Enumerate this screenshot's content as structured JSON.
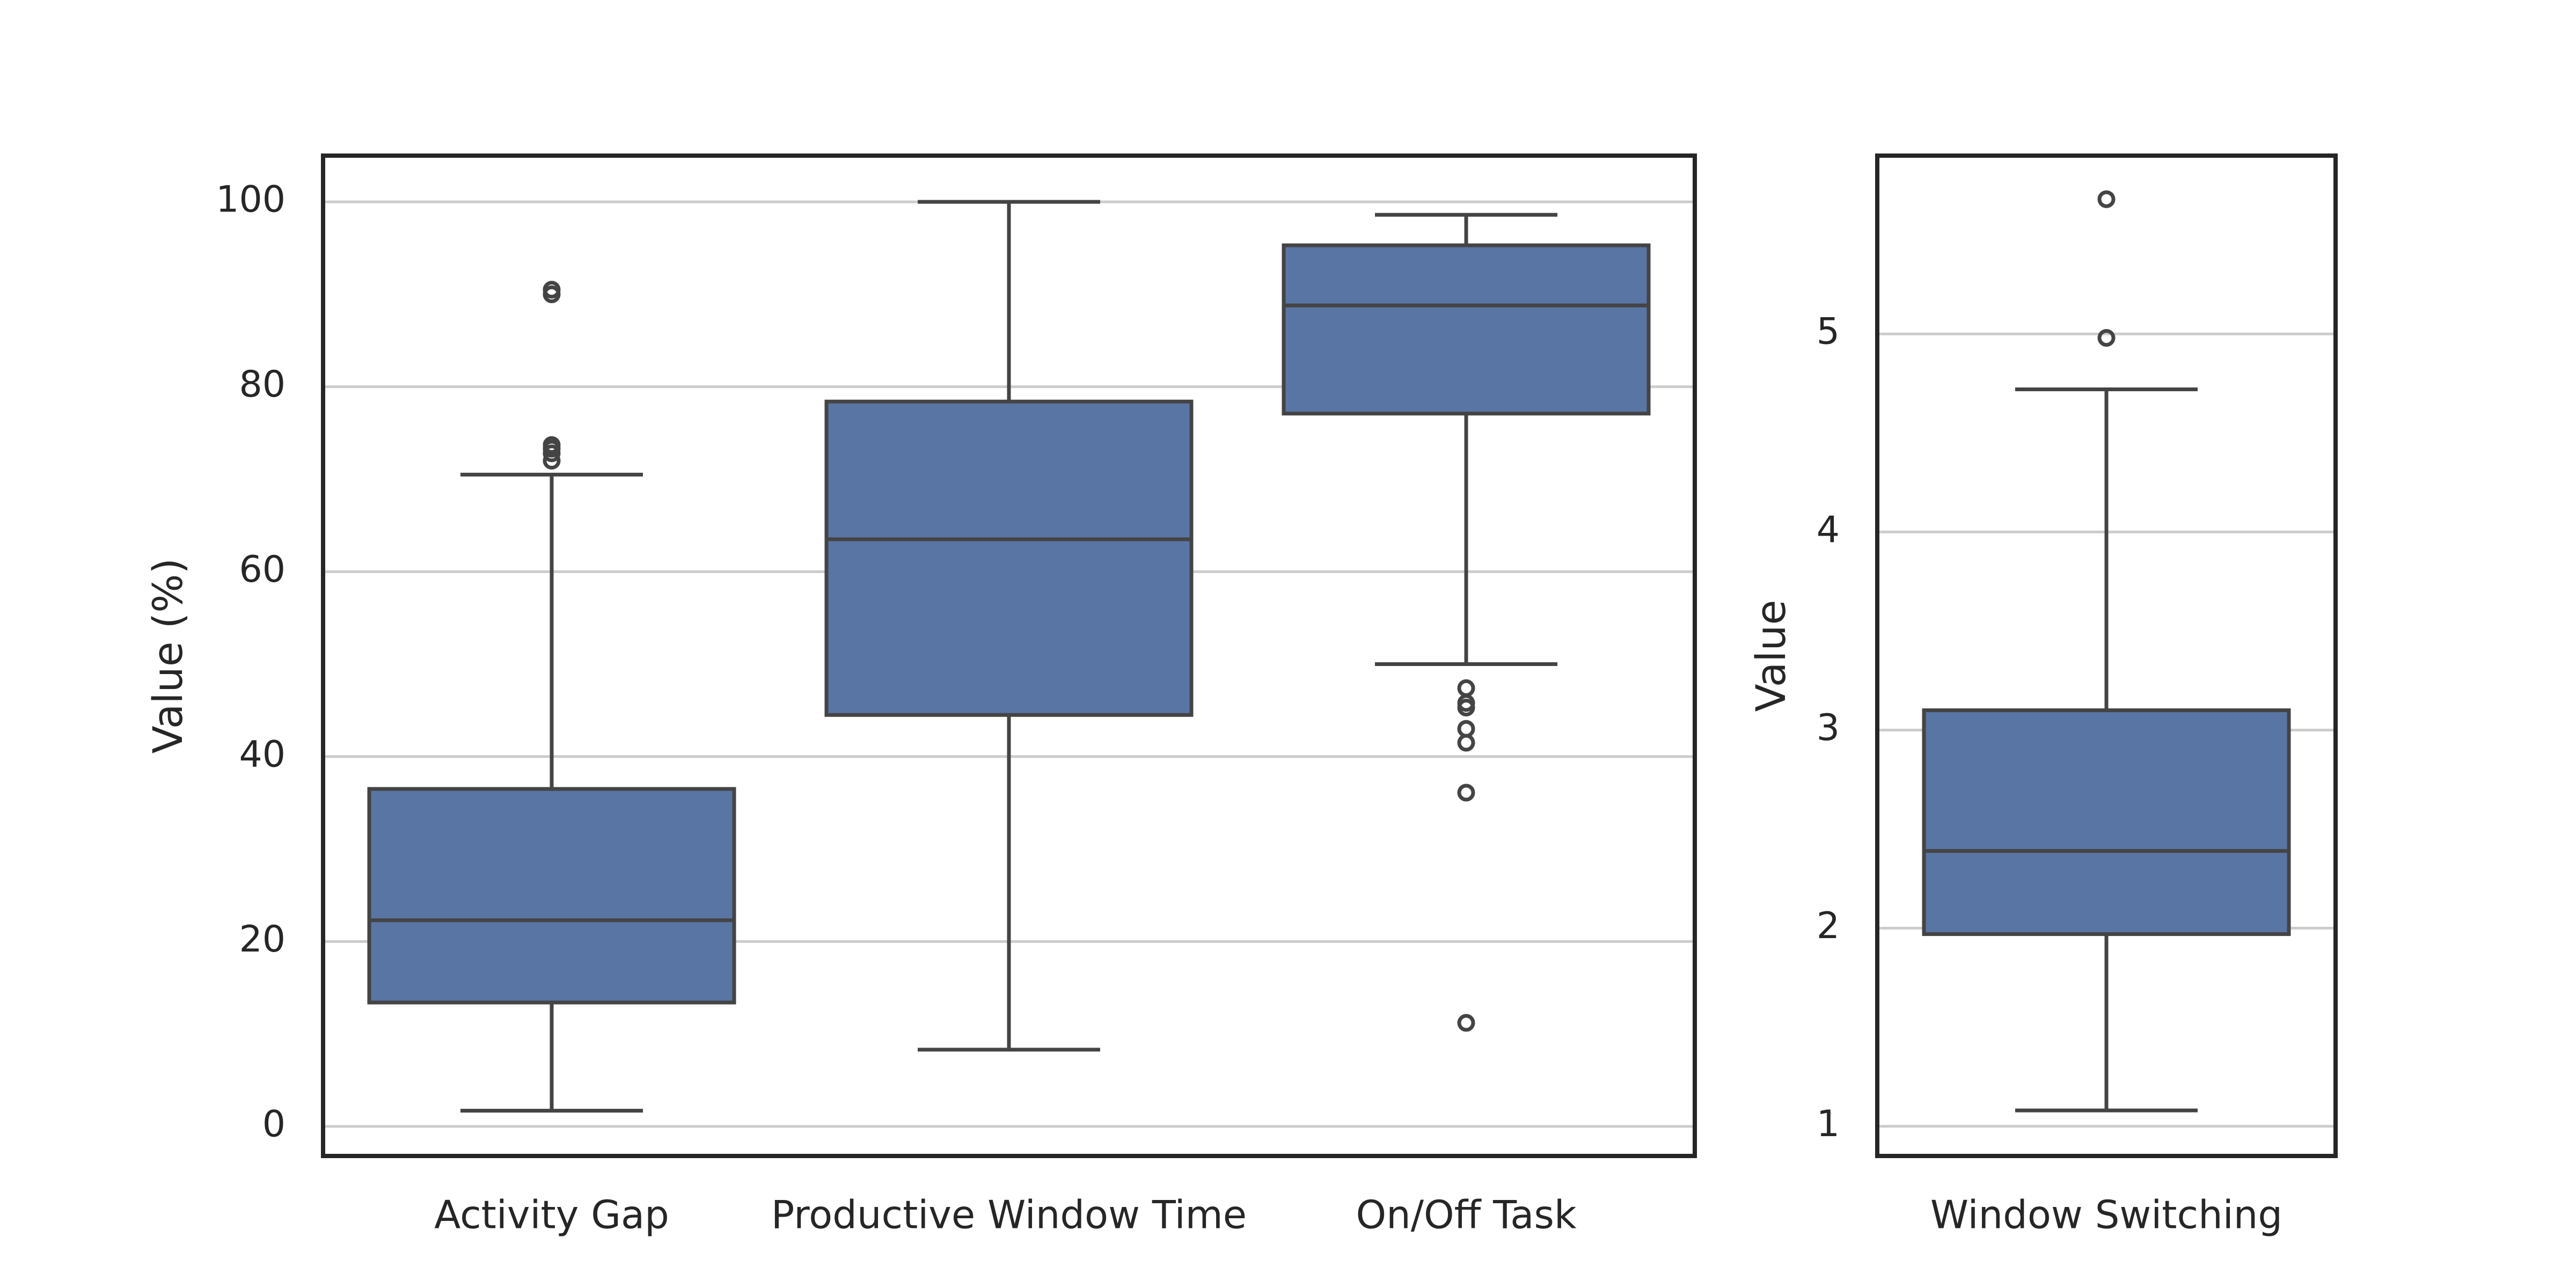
{
  "chart_data": [
    {
      "type": "box",
      "ylabel": "Value (%)",
      "ylim": [
        -3.2,
        105
      ],
      "yticks": [
        0,
        20,
        40,
        60,
        80,
        100
      ],
      "ytick_labels": [
        "0",
        "20",
        "40",
        "60",
        "80",
        "100"
      ],
      "grid": "horizontal",
      "color": "#5975a4",
      "edge_color": "#444444",
      "categories": [
        "Activity Gap",
        "Productive Window Time",
        "On/Off Task"
      ],
      "boxes": [
        {
          "category": "Activity Gap",
          "whisker_low": 1.7,
          "q1": 13.4,
          "median": 22.3,
          "q3": 36.5,
          "whisker_high": 70.5,
          "outliers": [
            72.0,
            72.8,
            73.3,
            73.7,
            90.0,
            90.5
          ]
        },
        {
          "category": "Productive Window Time",
          "whisker_low": 8.3,
          "q1": 44.5,
          "median": 63.5,
          "q3": 78.4,
          "whisker_high": 100.0,
          "outliers": []
        },
        {
          "category": "On/Off Task",
          "whisker_low": 50.0,
          "q1": 77.1,
          "median": 88.8,
          "q3": 95.3,
          "whisker_high": 98.6,
          "outliers": [
            11.2,
            36.1,
            41.5,
            43.0,
            45.3,
            45.8,
            47.4
          ]
        }
      ]
    },
    {
      "type": "box",
      "ylabel": "Value",
      "ylim": [
        0.85,
        5.9
      ],
      "yticks": [
        1,
        2,
        3,
        4,
        5
      ],
      "ytick_labels": [
        "1",
        "2",
        "3",
        "4",
        "5"
      ],
      "grid": "horizontal",
      "color": "#5975a4",
      "edge_color": "#444444",
      "categories": [
        "Window Switching"
      ],
      "boxes": [
        {
          "category": "Window Switching",
          "whisker_low": 1.08,
          "q1": 1.97,
          "median": 2.39,
          "q3": 3.1,
          "whisker_high": 4.72,
          "outliers": [
            4.98,
            5.68
          ]
        }
      ]
    }
  ]
}
